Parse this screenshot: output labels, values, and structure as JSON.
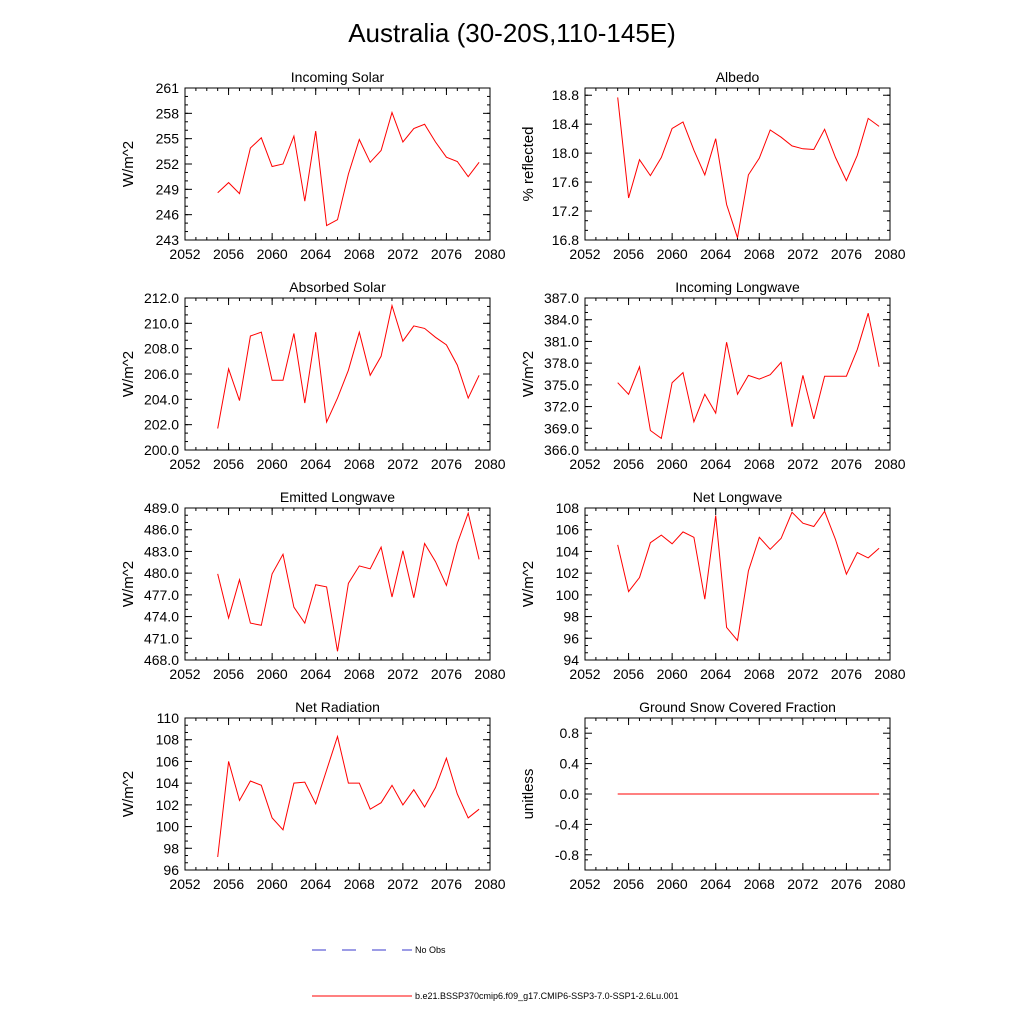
{
  "title": "Australia (30-20S,110-145E)",
  "legend": {
    "obs_label": "No Obs",
    "obs_color": "#3a3acc",
    "model_label": "b.e21.BSSP370cmip6.f09_g17.CMIP6-SSP3-7.0-SSP1-2.6Lu.001",
    "model_color": "#ff0000"
  },
  "chart_data": [
    {
      "type": "line",
      "title": "Incoming Solar",
      "ylabel": "W/m^2",
      "xlim": [
        2052,
        2080
      ],
      "xticks": [
        "2052",
        "2056",
        "2060",
        "2064",
        "2068",
        "2072",
        "2076",
        "2080"
      ],
      "ylim": [
        243,
        261
      ],
      "yticks": [
        "243",
        "246",
        "249",
        "252",
        "255",
        "258",
        "261"
      ],
      "x": [
        2055,
        2056,
        2057,
        2058,
        2059,
        2060,
        2061,
        2062,
        2063,
        2064,
        2065,
        2066,
        2067,
        2068,
        2069,
        2070,
        2071,
        2072,
        2073,
        2074,
        2075,
        2076,
        2077,
        2078,
        2079
      ],
      "series": [
        {
          "values": [
            248.6,
            249.8,
            248.5,
            253.9,
            255.1,
            251.7,
            252.0,
            255.3,
            247.6,
            255.9,
            244.7,
            245.4,
            250.8,
            254.9,
            252.2,
            253.6,
            258.1,
            254.6,
            256.2,
            256.7,
            254.6,
            252.8,
            252.3,
            250.5,
            252.2
          ]
        }
      ]
    },
    {
      "type": "line",
      "title": "Albedo",
      "ylabel": "% reflected",
      "xlim": [
        2052,
        2080
      ],
      "xticks": [
        "2052",
        "2056",
        "2060",
        "2064",
        "2068",
        "2072",
        "2076",
        "2080"
      ],
      "ylim": [
        16.8,
        18.9
      ],
      "yticks": [
        "16.8",
        "17.2",
        "17.6",
        "18.0",
        "18.4",
        "18.8"
      ],
      "x": [
        2055,
        2056,
        2057,
        2058,
        2059,
        2060,
        2061,
        2062,
        2063,
        2064,
        2065,
        2066,
        2067,
        2068,
        2069,
        2070,
        2071,
        2072,
        2073,
        2074,
        2075,
        2076,
        2077,
        2078,
        2079
      ],
      "series": [
        {
          "values": [
            18.77,
            17.38,
            17.91,
            17.69,
            17.94,
            18.34,
            18.43,
            18.04,
            17.7,
            18.2,
            17.29,
            16.83,
            17.7,
            17.93,
            18.32,
            18.22,
            18.1,
            18.06,
            18.05,
            18.33,
            17.94,
            17.62,
            17.97,
            18.48,
            18.37
          ]
        }
      ]
    },
    {
      "type": "line",
      "title": "Absorbed Solar",
      "ylabel": "W/m^2",
      "xlim": [
        2052,
        2080
      ],
      "xticks": [
        "2052",
        "2056",
        "2060",
        "2064",
        "2068",
        "2072",
        "2076",
        "2080"
      ],
      "ylim": [
        200.0,
        212.0
      ],
      "yticks": [
        "200.0",
        "202.0",
        "204.0",
        "206.0",
        "208.0",
        "210.0",
        "212.0"
      ],
      "x": [
        2055,
        2056,
        2057,
        2058,
        2059,
        2060,
        2061,
        2062,
        2063,
        2064,
        2065,
        2066,
        2067,
        2068,
        2069,
        2070,
        2071,
        2072,
        2073,
        2074,
        2075,
        2076,
        2077,
        2078,
        2079
      ],
      "series": [
        {
          "values": [
            201.7,
            206.4,
            203.9,
            209.0,
            209.3,
            205.5,
            205.5,
            209.2,
            203.7,
            209.3,
            202.2,
            204.1,
            206.3,
            209.3,
            205.9,
            207.4,
            211.4,
            208.6,
            209.8,
            209.6,
            208.9,
            208.3,
            206.7,
            204.1,
            205.9
          ]
        }
      ]
    },
    {
      "type": "line",
      "title": "Incoming Longwave",
      "ylabel": "W/m^2",
      "xlim": [
        2052,
        2080
      ],
      "xticks": [
        "2052",
        "2056",
        "2060",
        "2064",
        "2068",
        "2072",
        "2076",
        "2080"
      ],
      "ylim": [
        366.0,
        387.0
      ],
      "yticks": [
        "366.0",
        "369.0",
        "372.0",
        "375.0",
        "378.0",
        "381.0",
        "384.0",
        "387.0"
      ],
      "x": [
        2055,
        2056,
        2057,
        2058,
        2059,
        2060,
        2061,
        2062,
        2063,
        2064,
        2065,
        2066,
        2067,
        2068,
        2069,
        2070,
        2071,
        2072,
        2073,
        2074,
        2075,
        2076,
        2077,
        2078,
        2079
      ],
      "series": [
        {
          "values": [
            375.3,
            373.7,
            377.5,
            368.7,
            367.6,
            375.3,
            376.7,
            369.9,
            373.7,
            371.1,
            380.9,
            373.7,
            376.3,
            375.8,
            376.4,
            378.1,
            369.2,
            376.3,
            370.3,
            376.2,
            376.2,
            376.2,
            379.9,
            384.9,
            377.5
          ]
        }
      ]
    },
    {
      "type": "line",
      "title": "Emitted Longwave",
      "ylabel": "W/m^2",
      "xlim": [
        2052,
        2080
      ],
      "xticks": [
        "2052",
        "2056",
        "2060",
        "2064",
        "2068",
        "2072",
        "2076",
        "2080"
      ],
      "ylim": [
        468.0,
        489.0
      ],
      "yticks": [
        "468.0",
        "471.0",
        "474.0",
        "477.0",
        "480.0",
        "483.0",
        "486.0",
        "489.0"
      ],
      "x": [
        2055,
        2056,
        2057,
        2058,
        2059,
        2060,
        2061,
        2062,
        2063,
        2064,
        2065,
        2066,
        2067,
        2068,
        2069,
        2070,
        2071,
        2072,
        2073,
        2074,
        2075,
        2076,
        2077,
        2078,
        2079
      ],
      "series": [
        {
          "values": [
            479.9,
            473.8,
            479.1,
            473.1,
            472.8,
            479.9,
            482.6,
            475.3,
            473.1,
            478.4,
            478.1,
            469.2,
            478.6,
            481.0,
            480.6,
            483.6,
            476.7,
            483.1,
            476.6,
            484.1,
            481.6,
            478.3,
            484.1,
            488.3,
            481.9
          ]
        }
      ]
    },
    {
      "type": "line",
      "title": "Net Longwave",
      "ylabel": "W/m^2",
      "xlim": [
        2052,
        2080
      ],
      "xticks": [
        "2052",
        "2056",
        "2060",
        "2064",
        "2068",
        "2072",
        "2076",
        "2080"
      ],
      "ylim": [
        94,
        108
      ],
      "yticks": [
        "94",
        "96",
        "98",
        "100",
        "102",
        "104",
        "106",
        "108"
      ],
      "x": [
        2055,
        2056,
        2057,
        2058,
        2059,
        2060,
        2061,
        2062,
        2063,
        2064,
        2065,
        2066,
        2067,
        2068,
        2069,
        2070,
        2071,
        2072,
        2073,
        2074,
        2075,
        2076,
        2077,
        2078,
        2079
      ],
      "series": [
        {
          "values": [
            104.6,
            100.3,
            101.6,
            104.8,
            105.5,
            104.7,
            105.8,
            105.3,
            99.6,
            107.3,
            97.0,
            95.8,
            102.2,
            105.3,
            104.2,
            105.2,
            107.6,
            106.6,
            106.3,
            107.7,
            105.1,
            101.9,
            103.9,
            103.4,
            104.3
          ]
        }
      ]
    },
    {
      "type": "line",
      "title": "Net Radiation",
      "ylabel": "W/m^2",
      "xlim": [
        2052,
        2080
      ],
      "xticks": [
        "2052",
        "2056",
        "2060",
        "2064",
        "2068",
        "2072",
        "2076",
        "2080"
      ],
      "ylim": [
        96,
        110
      ],
      "yticks": [
        "96",
        "98",
        "100",
        "102",
        "104",
        "106",
        "108",
        "110"
      ],
      "x": [
        2055,
        2056,
        2057,
        2058,
        2059,
        2060,
        2061,
        2062,
        2063,
        2064,
        2065,
        2066,
        2067,
        2068,
        2069,
        2070,
        2071,
        2072,
        2073,
        2074,
        2075,
        2076,
        2077,
        2078,
        2079
      ],
      "series": [
        {
          "values": [
            97.2,
            106.0,
            102.4,
            104.2,
            103.8,
            100.8,
            99.7,
            104.0,
            104.1,
            102.1,
            105.2,
            108.3,
            104.0,
            104.0,
            101.6,
            102.2,
            103.8,
            102.0,
            103.4,
            101.8,
            103.6,
            106.3,
            103.0,
            100.8,
            101.6
          ]
        }
      ]
    },
    {
      "type": "line",
      "title": "Ground Snow Covered Fraction",
      "ylabel": "unitless",
      "xlim": [
        2052,
        2080
      ],
      "xticks": [
        "2052",
        "2056",
        "2060",
        "2064",
        "2068",
        "2072",
        "2076",
        "2080"
      ],
      "ylim": [
        -1.0,
        1.0
      ],
      "yticks": [
        "-0.8",
        "-0.4",
        "0.0",
        "0.4",
        "0.8"
      ],
      "x": [
        2055,
        2056,
        2057,
        2058,
        2059,
        2060,
        2061,
        2062,
        2063,
        2064,
        2065,
        2066,
        2067,
        2068,
        2069,
        2070,
        2071,
        2072,
        2073,
        2074,
        2075,
        2076,
        2077,
        2078,
        2079
      ],
      "series": [
        {
          "values": [
            0,
            0,
            0,
            0,
            0,
            0,
            0,
            0,
            0,
            0,
            0,
            0,
            0,
            0,
            0,
            0,
            0,
            0,
            0,
            0,
            0,
            0,
            0,
            0,
            0
          ]
        }
      ]
    }
  ]
}
